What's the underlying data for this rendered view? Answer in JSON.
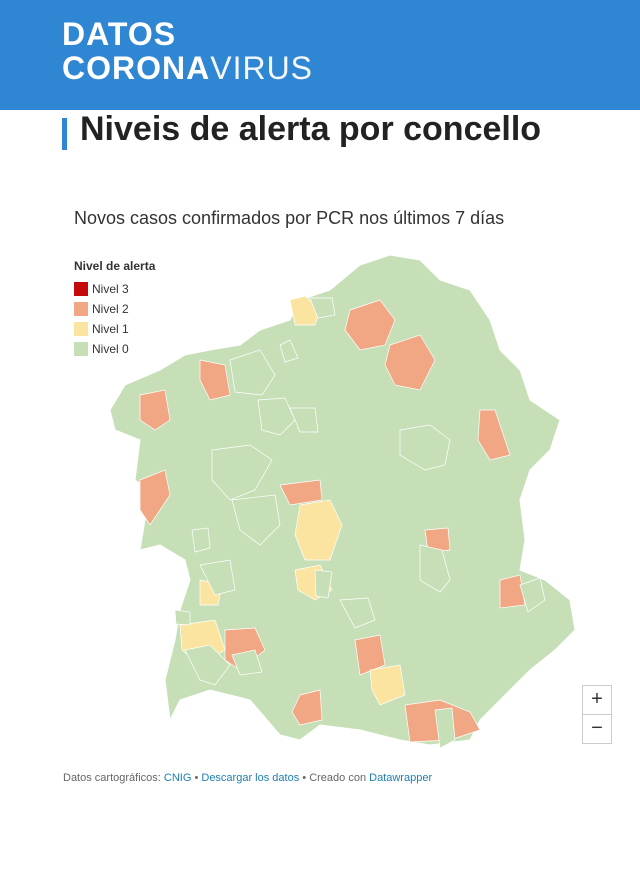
{
  "header": {
    "logo_line1": "DATOS",
    "logo_corona": "CORONA",
    "logo_virus": "VIRUS"
  },
  "title": "Niveis de alerta por concello",
  "subtitle": "Novos casos confirmados por PCR nos últimos 7 días",
  "legend": {
    "title": "Nivel de alerta",
    "items": [
      {
        "label": "Nivel 3",
        "color": "#c40a0a"
      },
      {
        "label": "Nivel 2",
        "color": "#f2a784"
      },
      {
        "label": "Nivel 1",
        "color": "#fbe4a0"
      },
      {
        "label": "Nivel 0",
        "color": "#c6dfb6"
      }
    ]
  },
  "zoom": {
    "in": "+",
    "out": "−"
  },
  "footer": {
    "source_label": "Datos cartográficos:",
    "source": "CNIG",
    "sep1": "•",
    "download": "Descargar los datos",
    "sep2": "•",
    "created": "Creado con",
    "tool": "Datawrapper"
  }
}
